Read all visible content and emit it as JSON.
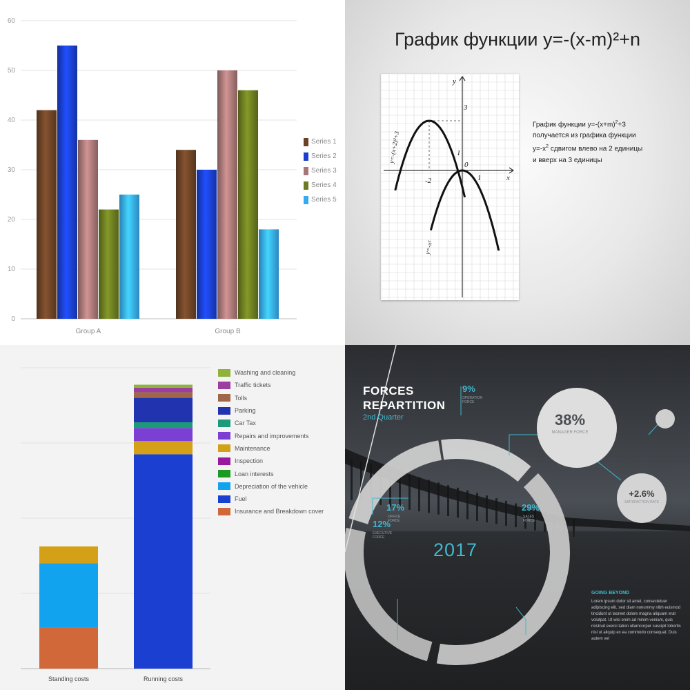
{
  "chart_data": [
    {
      "type": "bar",
      "categories": [
        "Group A",
        "Group B"
      ],
      "series": [
        {
          "name": "Series 1",
          "values": [
            42,
            34
          ],
          "color": "#6b4226"
        },
        {
          "name": "Series 2",
          "values": [
            55,
            30
          ],
          "color": "#1a3fcc"
        },
        {
          "name": "Series 3",
          "values": [
            36,
            50
          ],
          "color": "#a77676"
        },
        {
          "name": "Series 4",
          "values": [
            22,
            46
          ],
          "color": "#6a7b21"
        },
        {
          "name": "Series 5",
          "values": [
            25,
            18
          ],
          "color": "#36aaf0"
        }
      ],
      "ylim": [
        0,
        60
      ],
      "yticks": [
        "0",
        "10",
        "20",
        "30",
        "40",
        "50",
        "60"
      ],
      "grid": true,
      "legend": "right"
    },
    {
      "type": "line",
      "title": "График функции y=-(x-m)²+n",
      "series": [
        {
          "label": "y=-(x+2)²+3",
          "x": [
            -2.9,
            -2.6,
            -2.3,
            -2,
            -1.7,
            -1.4,
            -1.1,
            -0.8,
            -0.5,
            0.15
          ],
          "y": [
            -1.6,
            0.6,
            2.2,
            3,
            2.8,
            2.0,
            0.8,
            -0.8,
            -2.6,
            -1.6
          ]
        },
        {
          "label": "y=-x²",
          "x": [
            -1.5,
            -1.2,
            -0.9,
            -0.6,
            -0.3,
            0,
            0.3,
            0.6,
            0.9,
            1.2,
            1.5
          ],
          "y": [
            -2.25,
            -1.44,
            -0.81,
            -0.36,
            -0.09,
            0,
            -0.09,
            -0.36,
            -0.81,
            -1.44,
            -2.25
          ]
        }
      ],
      "axis_labels": {
        "x": "x",
        "y": "y",
        "origin": "0"
      },
      "tick_labels": {
        "x_neg": "-2",
        "x_pos": "1",
        "y_top": "3",
        "y_one": "1"
      },
      "note": {
        "line1": "График функции y=-(x+m)",
        "line1_sup": "2",
        "line1_end": "+3",
        "line2": "получается из графика функции",
        "line3": "y=-x",
        "line3_sup": "2",
        "line3_end": " сдвигом влево на 2 единицы",
        "line4": "и вверх на 3 единицы"
      },
      "grid": true
    },
    {
      "type": "bar",
      "stacked": true,
      "categories": [
        "Standing costs",
        "Running costs"
      ],
      "series": [
        {
          "name": "Insurance and Breakdown cover",
          "values": [
            11,
            0
          ],
          "color": "#d1683a"
        },
        {
          "name": "Fuel",
          "values": [
            0,
            57
          ],
          "color": "#1a3fd1"
        },
        {
          "name": "Depreciation of the vehicle",
          "values": [
            17,
            0
          ],
          "color": "#11a3ee"
        },
        {
          "name": "Loan interests",
          "values": [
            0,
            0
          ],
          "color": "#1c9a22"
        },
        {
          "name": "Inspection",
          "values": [
            0,
            0
          ],
          "color": "#9a1a9e"
        },
        {
          "name": "Maintenance",
          "values": [
            4.5,
            3.5
          ],
          "color": "#d4a017"
        },
        {
          "name": "Repairs and improvements",
          "values": [
            0,
            3.5
          ],
          "color": "#7b3fd4"
        },
        {
          "name": "Car Tax",
          "values": [
            0,
            1.5
          ],
          "color": "#1a9a78"
        },
        {
          "name": "Parking",
          "values": [
            0,
            6.5
          ],
          "color": "#2233b0"
        },
        {
          "name": "Tolls",
          "values": [
            0,
            1.5
          ],
          "color": "#a0664a"
        },
        {
          "name": "Traffic tickets",
          "values": [
            0,
            1.2
          ],
          "color": "#9a3fa0"
        },
        {
          "name": "Washing and cleaning",
          "values": [
            0,
            0.8
          ],
          "color": "#8fb23a"
        }
      ],
      "ylim": [
        0,
        80
      ],
      "grid": true,
      "legend": "right"
    },
    {
      "type": "pie",
      "donut": true,
      "title": "FORCES REPARTITION",
      "subtitle": "2nd Quarter",
      "center_label": "2017",
      "slices": [
        {
          "value": 9,
          "pct": "9%",
          "label": "OPERATION FORCE"
        },
        {
          "value": 29,
          "pct": "29%",
          "label": "SALES FORCE"
        },
        {
          "value": 17,
          "pct": "17%",
          "label": "OFFICE FORCE"
        },
        {
          "value": 12,
          "pct": "12%",
          "label": "EXECUTIVE FORCE"
        }
      ],
      "circles": [
        {
          "pct": "38%",
          "label": "MANAGER FORCE"
        },
        {
          "pct": "+2.6%",
          "label": "SATISFACTION RATE"
        }
      ],
      "text_block": {
        "title": "GOING BEYOND",
        "body": "Lorem ipsum dolor sit amet, consectetuer adipiscing elit, sed diam nonummy nibh euismod tincidunt ut laoreet dolore magna aliquam erat volutpat. Ut wisi enim ad minim veniam, quis nostrud exerci tation ullamcorper suscipit lobortis nisl ut aliquip ex ea commodo consequat. Duis autem vel"
      }
    }
  ]
}
